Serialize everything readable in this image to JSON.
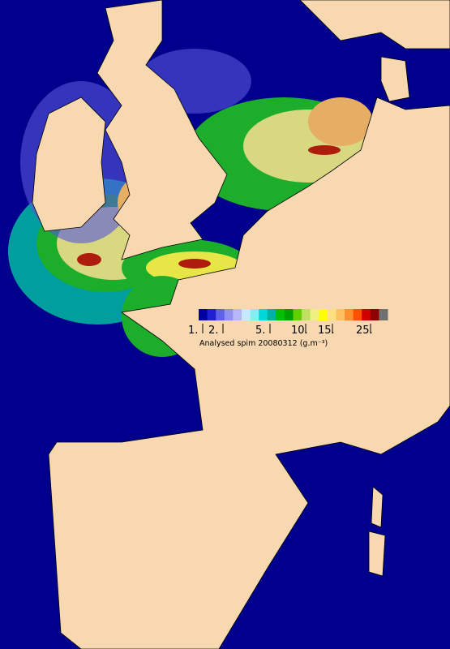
{
  "colorbar": {
    "colors": [
      "#0000a0",
      "#2020d0",
      "#6060e8",
      "#9090f0",
      "#b8b8f8",
      "#c8e8ff",
      "#80f0f0",
      "#00d8d8",
      "#00b0a0",
      "#00c000",
      "#00a000",
      "#60d000",
      "#c0e060",
      "#f0f080",
      "#ffff00",
      "#ffe080",
      "#ffc060",
      "#ff9030",
      "#ff5000",
      "#d00000",
      "#900000",
      "#707070"
    ],
    "tick_labels": [
      "1.",
      "2.",
      "5.",
      "10.",
      "15.",
      "25."
    ]
  },
  "caption": "Analysed spim 20080312 (g.m⁻³)"
}
